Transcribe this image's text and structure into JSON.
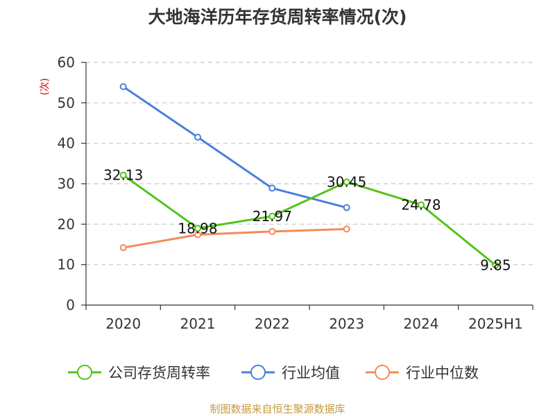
{
  "chart_data": {
    "type": "line",
    "title": "大地海洋历年存货周转率情况(次)",
    "ylabel": "(次)",
    "xlabel": "",
    "categories": [
      "2020",
      "2021",
      "2022",
      "2023",
      "2024",
      "2025H1"
    ],
    "ylim": [
      0,
      60
    ],
    "yticks": [
      0,
      10,
      20,
      30,
      40,
      50,
      60
    ],
    "grid": true,
    "legend_position": "bottom",
    "series": [
      {
        "name": "公司存货周转率",
        "color": "#52c41a",
        "values": [
          32.13,
          18.98,
          21.97,
          30.45,
          24.78,
          9.85
        ],
        "labels": [
          "32.13",
          "18.98",
          "21.97",
          "30.45",
          "24.78",
          "9.85"
        ]
      },
      {
        "name": "行业均值",
        "color": "#4a7fdb",
        "values": [
          54.0,
          41.5,
          28.9,
          24.1,
          null,
          null
        ]
      },
      {
        "name": "行业中位数",
        "color": "#f4895a",
        "values": [
          14.2,
          17.4,
          18.2,
          18.8,
          null,
          null
        ]
      }
    ]
  },
  "source": "制图数据来自恒生聚源数据库"
}
